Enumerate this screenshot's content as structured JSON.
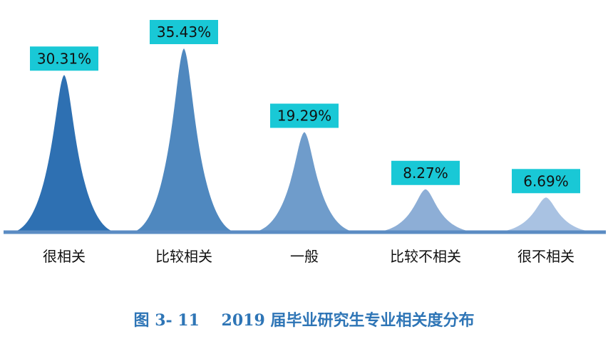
{
  "chart_data": {
    "type": "bar",
    "style": "peak",
    "categories": [
      "很相关",
      "比较相关",
      "一般",
      "比较不相关",
      "很不相关"
    ],
    "values": [
      30.31,
      35.43,
      19.29,
      8.27,
      6.69
    ],
    "labels": [
      "30.31%",
      "35.43%",
      "19.29%",
      "8.27%",
      "6.69%"
    ],
    "unit": "%",
    "ylim": [
      0,
      35.43
    ],
    "colors": [
      "#2e70b2",
      "#4f88bf",
      "#6f9ccb",
      "#8daed6",
      "#a9c2e2"
    ],
    "label_bg": "#19c8d6",
    "axis_color": "#5b8cc3",
    "title": "图 3- 11    2019 届毕业研究生专业相关度分布"
  }
}
